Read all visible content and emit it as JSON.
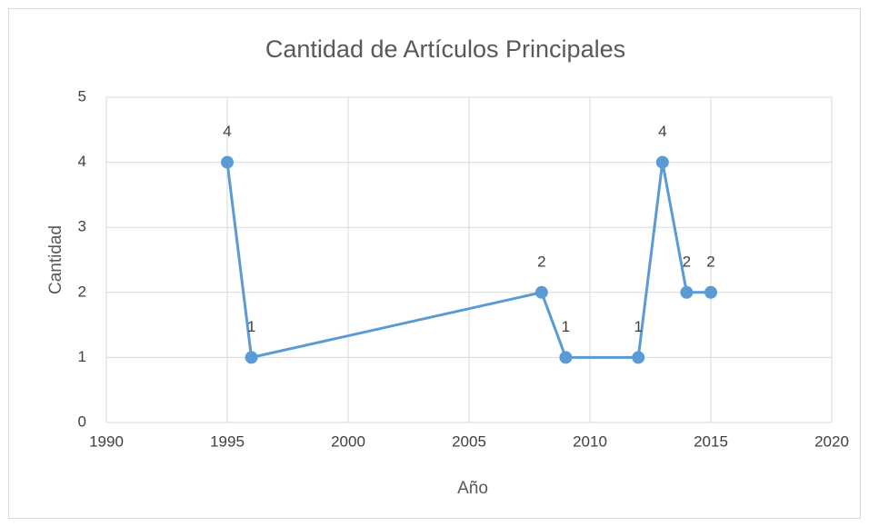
{
  "chart_data": {
    "type": "line",
    "title": "Cantidad de Artículos Principales",
    "x_label": "Año",
    "y_label": "Cantidad",
    "x": [
      1995,
      1996,
      2008,
      2009,
      2012,
      2013,
      2014,
      2015
    ],
    "series": [
      {
        "name": "Cantidad",
        "color": "#5b9bd5",
        "values": [
          4,
          1,
          2,
          1,
          1,
          4,
          2,
          2
        ]
      }
    ],
    "xlim": [
      1990,
      2020
    ],
    "xticks": [
      1990,
      1995,
      2000,
      2005,
      2010,
      2015,
      2020
    ],
    "ylim": [
      0,
      5
    ],
    "yticks": [
      0,
      1,
      2,
      3,
      4,
      5
    ],
    "grid": true
  }
}
